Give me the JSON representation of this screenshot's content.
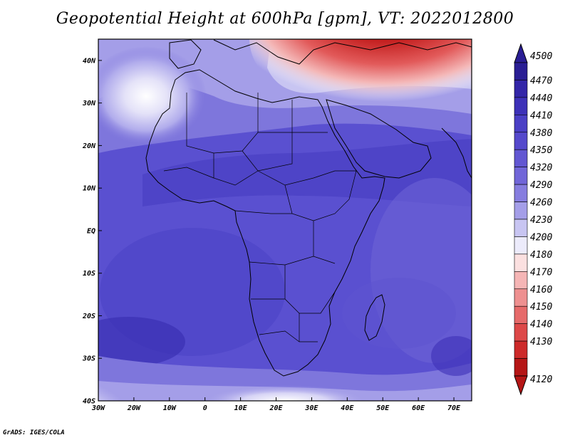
{
  "title": "Geopotential Height at 600hPa [gpm], VT: 2022012800",
  "credit": "GrADS: IGES/COLA",
  "map": {
    "type": "filled-contour-map",
    "region": "Africa",
    "lon_range": [
      -30,
      75
    ],
    "lat_range": [
      -40,
      45
    ],
    "x_ticks": [
      "30W",
      "20W",
      "10W",
      "0",
      "10E",
      "20E",
      "30E",
      "40E",
      "50E",
      "60E",
      "70E"
    ],
    "y_ticks": [
      "40S",
      "30S",
      "20S",
      "10S",
      "EQ",
      "10N",
      "20N",
      "30N",
      "40N"
    ]
  },
  "colorbar": {
    "levels": [
      "4500",
      "4470",
      "4440",
      "4410",
      "4380",
      "4350",
      "4320",
      "4290",
      "4260",
      "4230",
      "4200",
      "4180",
      "4170",
      "4160",
      "4150",
      "4140",
      "4130",
      "4120"
    ],
    "colors": [
      "#2a1e94",
      "#3326a8",
      "#3d31b8",
      "#4a3fc5",
      "#5549cc",
      "#6257d2",
      "#7166d8",
      "#867ddf",
      "#a49ee8",
      "#c8c5f2",
      "#ecebfb",
      "#fbe0e0",
      "#f5b5b5",
      "#ee9090",
      "#e66a6a",
      "#dd4848",
      "#cd2a2a",
      "#b51616"
    ]
  }
}
